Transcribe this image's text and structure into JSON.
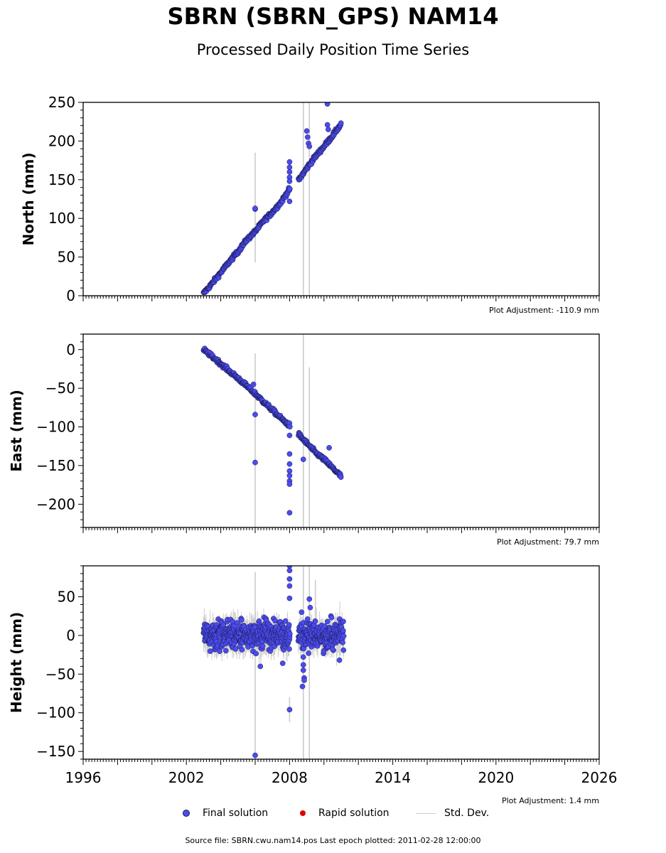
{
  "title": "SBRN (SBRN_GPS) NAM14",
  "subtitle": "Processed Daily Position Time Series",
  "footer": "Source file: SBRN.cwu.nam14.pos  Last epoch plotted: 2011-02-28 12:00:00",
  "legend": {
    "final": "Final solution",
    "rapid": "Rapid solution",
    "std": "Std. Dev."
  },
  "colors": {
    "final": "#4b4bf0",
    "final_edge": "#1a1a4a",
    "rapid": "#e00000",
    "std": "#cccccc"
  },
  "chart_data": [
    {
      "type": "scatter",
      "ylabel": "North (mm)",
      "adjustment": "Plot Adjustment: -110.9 mm",
      "xlim": [
        1996,
        2026
      ],
      "ylim": [
        0,
        250
      ],
      "yticks": [
        0,
        50,
        100,
        150,
        200,
        250
      ],
      "trend": [
        {
          "x": 2003.0,
          "y": 3
        },
        {
          "x": 2003.5,
          "y": 16
        },
        {
          "x": 2004.0,
          "y": 30
        },
        {
          "x": 2004.5,
          "y": 44
        },
        {
          "x": 2005.0,
          "y": 57
        },
        {
          "x": 2005.5,
          "y": 72
        },
        {
          "x": 2006.0,
          "y": 83
        },
        {
          "x": 2006.5,
          "y": 97
        },
        {
          "x": 2007.0,
          "y": 108
        },
        {
          "x": 2007.5,
          "y": 121
        },
        {
          "x": 2008.0,
          "y": 138
        },
        {
          "x": 2008.55,
          "y": 150
        },
        {
          "x": 2009.0,
          "y": 165
        },
        {
          "x": 2009.5,
          "y": 180
        },
        {
          "x": 2010.0,
          "y": 193
        },
        {
          "x": 2010.5,
          "y": 207
        },
        {
          "x": 2011.0,
          "y": 222
        }
      ],
      "outliers": [
        {
          "x": 2006.0,
          "y": 112
        },
        {
          "x": 2006.0,
          "y": 113
        },
        {
          "x": 2008.0,
          "y": 173
        },
        {
          "x": 2008.0,
          "y": 166
        },
        {
          "x": 2008.0,
          "y": 160
        },
        {
          "x": 2008.0,
          "y": 153
        },
        {
          "x": 2008.0,
          "y": 148
        },
        {
          "x": 2008.0,
          "y": 122
        },
        {
          "x": 2009.0,
          "y": 213
        },
        {
          "x": 2009.05,
          "y": 205
        },
        {
          "x": 2009.1,
          "y": 197
        },
        {
          "x": 2009.15,
          "y": 193
        },
        {
          "x": 2010.2,
          "y": 248
        },
        {
          "x": 2010.2,
          "y": 221
        },
        {
          "x": 2010.25,
          "y": 215
        }
      ],
      "std_bars": [
        {
          "x": 2006.0,
          "low": 43,
          "high": 185
        },
        {
          "x": 2008.8,
          "low": 0,
          "high": 250
        },
        {
          "x": 2009.15,
          "low": 0,
          "high": 250
        }
      ]
    },
    {
      "type": "scatter",
      "ylabel": "East (mm)",
      "adjustment": "Plot Adjustment: 79.7 mm",
      "xlim": [
        1996,
        2026
      ],
      "ylim": [
        -230,
        20
      ],
      "yticks": [
        -200,
        -150,
        -100,
        -50,
        0
      ],
      "trend": [
        {
          "x": 2003.0,
          "y": 0
        },
        {
          "x": 2003.5,
          "y": -9
        },
        {
          "x": 2004.0,
          "y": -18
        },
        {
          "x": 2004.5,
          "y": -28
        },
        {
          "x": 2005.0,
          "y": -37
        },
        {
          "x": 2005.5,
          "y": -47
        },
        {
          "x": 2006.0,
          "y": -57
        },
        {
          "x": 2006.5,
          "y": -68
        },
        {
          "x": 2007.0,
          "y": -78
        },
        {
          "x": 2007.5,
          "y": -89
        },
        {
          "x": 2008.0,
          "y": -98
        },
        {
          "x": 2008.55,
          "y": -110
        },
        {
          "x": 2009.0,
          "y": -121
        },
        {
          "x": 2009.5,
          "y": -133
        },
        {
          "x": 2010.0,
          "y": -142
        },
        {
          "x": 2010.5,
          "y": -153
        },
        {
          "x": 2011.0,
          "y": -164
        }
      ],
      "outliers": [
        {
          "x": 2005.9,
          "y": -45
        },
        {
          "x": 2006.0,
          "y": -84
        },
        {
          "x": 2006.0,
          "y": -146
        },
        {
          "x": 2008.0,
          "y": -111
        },
        {
          "x": 2008.0,
          "y": -135
        },
        {
          "x": 2008.0,
          "y": -148
        },
        {
          "x": 2008.0,
          "y": -157
        },
        {
          "x": 2008.0,
          "y": -163
        },
        {
          "x": 2008.0,
          "y": -170
        },
        {
          "x": 2008.0,
          "y": -174
        },
        {
          "x": 2008.0,
          "y": -211
        },
        {
          "x": 2008.8,
          "y": -142
        },
        {
          "x": 2010.3,
          "y": -127
        }
      ],
      "std_bars": [
        {
          "x": 2006.0,
          "low": -230,
          "high": -5
        },
        {
          "x": 2008.8,
          "low": -230,
          "high": 20
        },
        {
          "x": 2009.15,
          "low": -230,
          "high": -23
        }
      ]
    },
    {
      "type": "scatter",
      "ylabel": "Height (mm)",
      "adjustment": "Plot Adjustment: 1.4 mm",
      "xlim": [
        1996,
        2026
      ],
      "ylim": [
        -160,
        90
      ],
      "yticks": [
        -150,
        -100,
        -50,
        0,
        50
      ],
      "xticks": [
        1996,
        2002,
        2008,
        2014,
        2020,
        2026
      ],
      "band": {
        "x_start": 2003.0,
        "x_end": 2011.15,
        "mean": 0,
        "spread": 20
      },
      "outliers": [
        {
          "x": 2006.0,
          "y": -155
        },
        {
          "x": 2006.3,
          "y": -40
        },
        {
          "x": 2007.6,
          "y": -36
        },
        {
          "x": 2008.0,
          "y": 90
        },
        {
          "x": 2008.0,
          "y": 84
        },
        {
          "x": 2008.0,
          "y": 73
        },
        {
          "x": 2008.0,
          "y": 64
        },
        {
          "x": 2008.0,
          "y": 48
        },
        {
          "x": 2008.0,
          "y": -96
        },
        {
          "x": 2008.7,
          "y": 30
        },
        {
          "x": 2008.8,
          "y": -28
        },
        {
          "x": 2008.8,
          "y": -38
        },
        {
          "x": 2008.8,
          "y": -45
        },
        {
          "x": 2008.85,
          "y": -55
        },
        {
          "x": 2008.85,
          "y": -58
        },
        {
          "x": 2008.75,
          "y": -66
        },
        {
          "x": 2009.15,
          "y": 47
        },
        {
          "x": 2009.2,
          "y": 36
        },
        {
          "x": 2009.1,
          "y": -23
        },
        {
          "x": 2010.9,
          "y": -32
        },
        {
          "x": 2010.5,
          "y": -18
        }
      ],
      "std_bars": [
        {
          "x": 2006.0,
          "low": -160,
          "high": 82
        },
        {
          "x": 2008.8,
          "low": -160,
          "high": 90
        },
        {
          "x": 2009.15,
          "low": -160,
          "high": 90
        },
        {
          "x": 2009.5,
          "low": 10,
          "high": 72
        },
        {
          "x": 2008.0,
          "low": -112,
          "high": -80
        }
      ]
    }
  ]
}
